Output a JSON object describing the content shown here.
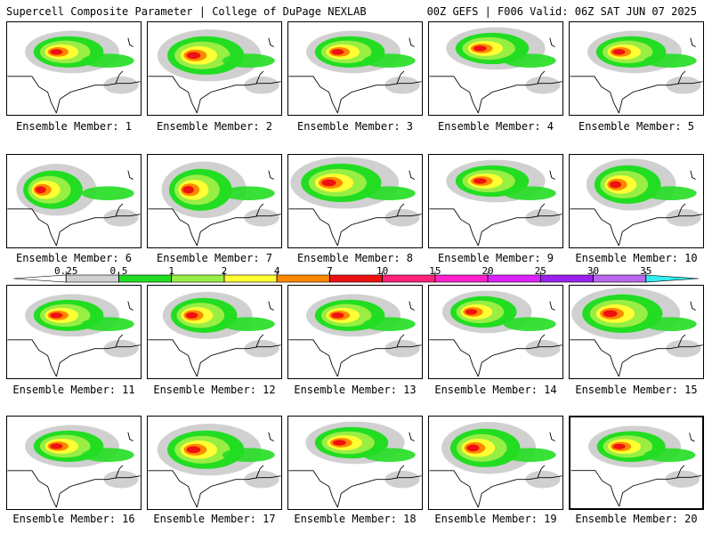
{
  "header": {
    "title": "Supercell Composite Parameter | College of DuPage NEXLAB",
    "run_info": "00Z GEFS | F006 Valid: 06Z SAT JUN 07 2025"
  },
  "caption_prefix": "Ensemble Member:",
  "members": [
    {
      "id": "1",
      "variant": 0
    },
    {
      "id": "2",
      "variant": 1
    },
    {
      "id": "3",
      "variant": 0
    },
    {
      "id": "4",
      "variant": 2
    },
    {
      "id": "5",
      "variant": 0
    },
    {
      "id": "6",
      "variant": 3
    },
    {
      "id": "7",
      "variant": 4
    },
    {
      "id": "8",
      "variant": 5
    },
    {
      "id": "9",
      "variant": 2
    },
    {
      "id": "10",
      "variant": 6
    },
    {
      "id": "11",
      "variant": 0
    },
    {
      "id": "12",
      "variant": 7
    },
    {
      "id": "13",
      "variant": 0
    },
    {
      "id": "14",
      "variant": 8
    },
    {
      "id": "15",
      "variant": 5
    },
    {
      "id": "16",
      "variant": 0
    },
    {
      "id": "17",
      "variant": 1
    },
    {
      "id": "18",
      "variant": 2
    },
    {
      "id": "19",
      "variant": 9
    },
    {
      "id": "20",
      "variant": 0
    }
  ],
  "selected_member": "20",
  "legend": {
    "thresholds": [
      "0.25",
      "0.5",
      "1",
      "2",
      "4",
      "7",
      "10",
      "15",
      "20",
      "25",
      "30",
      "35"
    ],
    "colors": [
      "#ffffff",
      "#d0d0d0",
      "#22dd22",
      "#99ee44",
      "#ffff33",
      "#ff8800",
      "#ee1111",
      "#ff2277",
      "#ff22cc",
      "#dd22ff",
      "#9922ee",
      "#bb66ee",
      "#33eeee"
    ]
  }
}
